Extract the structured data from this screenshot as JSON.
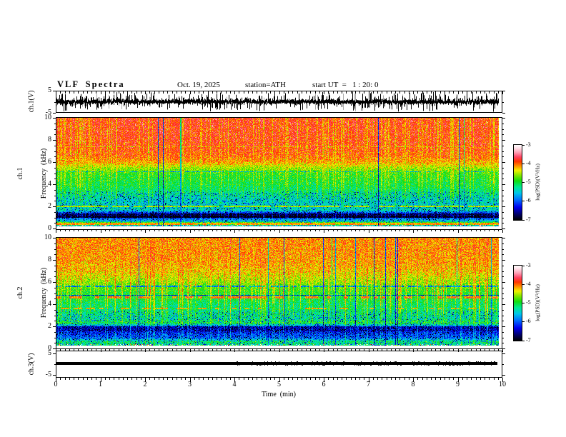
{
  "header": {
    "title": "VLF Spectra",
    "date": "Oct. 19, 2025",
    "station": "station=ATH",
    "start_ut": "start UT  =   1 : 20: 0"
  },
  "xaxis": {
    "label": "Time  (min)",
    "ticks": [
      0,
      1,
      2,
      3,
      4,
      5,
      6,
      7,
      8,
      9,
      10
    ],
    "minor_step": 0.1,
    "range": [
      0,
      10
    ]
  },
  "panels": {
    "wave": {
      "name": "ch.1(V)",
      "yticks": [
        5,
        -5
      ],
      "yminor": [
        0
      ],
      "yrange": [
        -5,
        5
      ]
    },
    "spec1": {
      "name_line1": "ch.1",
      "name_line2": "Frequency  (kHz)",
      "yticks": [
        10,
        8,
        6,
        4,
        2,
        0
      ],
      "yminor_step": 0.5,
      "yrange": [
        0,
        10
      ]
    },
    "spec2": {
      "name_line1": "ch.2",
      "name_line2": "Frequency  (kHz)",
      "yticks": [
        10,
        8,
        6,
        4,
        2,
        0
      ],
      "yminor_step": 0.5,
      "yrange": [
        0,
        10
      ]
    },
    "ch3": {
      "name": "ch.3(V)",
      "yticks": [
        5,
        -5
      ],
      "yminor": [
        0
      ],
      "yrange": [
        -5,
        5
      ]
    }
  },
  "colorbar": {
    "label": "log(PSD)(V²/Hz)",
    "ticks": [
      -3,
      -4,
      -5,
      -6,
      -7
    ],
    "range": [
      -7,
      -3
    ]
  },
  "chart_data": {
    "type": "heatmap",
    "title": "VLF Spectra",
    "x": {
      "label": "Time  (min)",
      "range": [
        0,
        10
      ],
      "units": "min"
    },
    "colorbar": {
      "label": "log(PSD)(V²/Hz)",
      "range": [
        -7,
        -3
      ],
      "ticks": [
        -3,
        -4,
        -5,
        -6,
        -7
      ]
    },
    "colormap": [
      [
        0.0,
        "#000000"
      ],
      [
        0.08,
        "#00006a"
      ],
      [
        0.17,
        "#0000f0"
      ],
      [
        0.27,
        "#0070ff"
      ],
      [
        0.36,
        "#00c8e8"
      ],
      [
        0.44,
        "#00e890"
      ],
      [
        0.52,
        "#10dd10"
      ],
      [
        0.6,
        "#8ce800"
      ],
      [
        0.66,
        "#f2f200"
      ],
      [
        0.72,
        "#ff9000"
      ],
      [
        0.78,
        "#ff3500"
      ],
      [
        0.84,
        "#ff4466"
      ],
      [
        0.9,
        "#ff9fb4"
      ],
      [
        0.96,
        "#ffe2ea"
      ],
      [
        1.0,
        "#ffffff"
      ]
    ],
    "panels": [
      {
        "id": "wave",
        "channel": "ch.1",
        "kind": "waveform",
        "units": "V",
        "yrange": [
          -5,
          5
        ],
        "mean": 0,
        "typical_peak": 4.5,
        "description": "dense broadband noise signal with impulsive spikes spanning nearly the full -5..5 V range",
        "seed": 7
      },
      {
        "id": "spec1",
        "channel": "ch.1",
        "kind": "spectrogram",
        "yrange_khz": [
          0,
          10
        ],
        "base_profile": [
          [
            0.0,
            -5.3
          ],
          [
            0.3,
            -5.6
          ],
          [
            0.5,
            -4.2
          ],
          [
            0.7,
            -5.5
          ],
          [
            0.95,
            -6.0
          ],
          [
            1.2,
            -6.8
          ],
          [
            1.45,
            -6.2
          ],
          [
            1.7,
            -5.4
          ],
          [
            2.3,
            -5.5
          ],
          [
            3.0,
            -5.3
          ],
          [
            4.0,
            -5.05
          ],
          [
            5.0,
            -4.9
          ],
          [
            5.5,
            -4.55
          ],
          [
            6.0,
            -4.15
          ],
          [
            6.6,
            -3.95
          ],
          [
            7.5,
            -3.85
          ],
          [
            10.0,
            -3.8
          ]
        ],
        "lines": [
          {
            "f": 2.02,
            "h": 0.07,
            "level": -4.55,
            "dash": 0.15
          },
          {
            "f": 1.12,
            "h": 0.1,
            "level": -7.0,
            "dash": 0.0
          },
          {
            "f": 1.32,
            "h": 0.07,
            "level": -6.8,
            "dash": 0.0
          },
          {
            "f": 0.5,
            "h": 0.1,
            "level": -4.15,
            "dash": 0.1
          },
          {
            "f": 5.15,
            "h": 0.05,
            "level": -5.7,
            "dash": 0.25
          },
          {
            "f": 7.4,
            "h": 0.05,
            "level": -4.3,
            "dash": 0.35
          }
        ],
        "streaks": {
          "prob": 0.33,
          "target": -4.35,
          "noise": 0.75,
          "dark_prob": 0.012
        },
        "seed": 42
      },
      {
        "id": "spec2",
        "channel": "ch.2",
        "kind": "spectrogram",
        "yrange_khz": [
          0,
          10
        ],
        "base_profile": [
          [
            0.0,
            -6.5
          ],
          [
            0.12,
            -5.0
          ],
          [
            0.35,
            -5.3
          ],
          [
            0.6,
            -5.15
          ],
          [
            0.95,
            -6.0
          ],
          [
            1.25,
            -6.1
          ],
          [
            1.6,
            -6.3
          ],
          [
            1.9,
            -6.1
          ],
          [
            2.3,
            -5.0
          ],
          [
            2.7,
            -5.3
          ],
          [
            3.2,
            -5.2
          ],
          [
            4.0,
            -5.15
          ],
          [
            4.5,
            -5.0
          ],
          [
            5.0,
            -4.95
          ],
          [
            5.5,
            -4.8
          ],
          [
            6.0,
            -4.6
          ],
          [
            6.6,
            -4.4
          ],
          [
            7.2,
            -4.25
          ],
          [
            8.0,
            -4.15
          ],
          [
            10.0,
            -4.1
          ]
        ],
        "lines": [
          {
            "f": 4.62,
            "h": 0.08,
            "level": -4.0,
            "dash": 0.45
          },
          {
            "f": 3.6,
            "h": 0.07,
            "level": -4.25,
            "dash": 0.5
          },
          {
            "f": 4.8,
            "h": 0.05,
            "level": -6.3,
            "dash": 0.0
          },
          {
            "f": 5.62,
            "h": 0.05,
            "level": -5.9,
            "dash": 0.25
          },
          {
            "f": 1.75,
            "h": 0.22,
            "level": -6.5,
            "dash": 0.0
          },
          {
            "f": 0.05,
            "h": 0.07,
            "level": -6.9,
            "dash": 0.0
          }
        ],
        "streaks": {
          "prob": 0.3,
          "target": -3.95,
          "noise": 0.8,
          "dark_prob": 0.015
        },
        "seed": 1337
      },
      {
        "id": "ch3",
        "channel": "ch.3",
        "kind": "waveform",
        "units": "V",
        "yrange": [
          -5,
          5
        ],
        "constant_value": 0,
        "description": "flat constant trace at 0 V (thick black line), slight fuzz on right half",
        "seed": 99
      }
    ]
  }
}
